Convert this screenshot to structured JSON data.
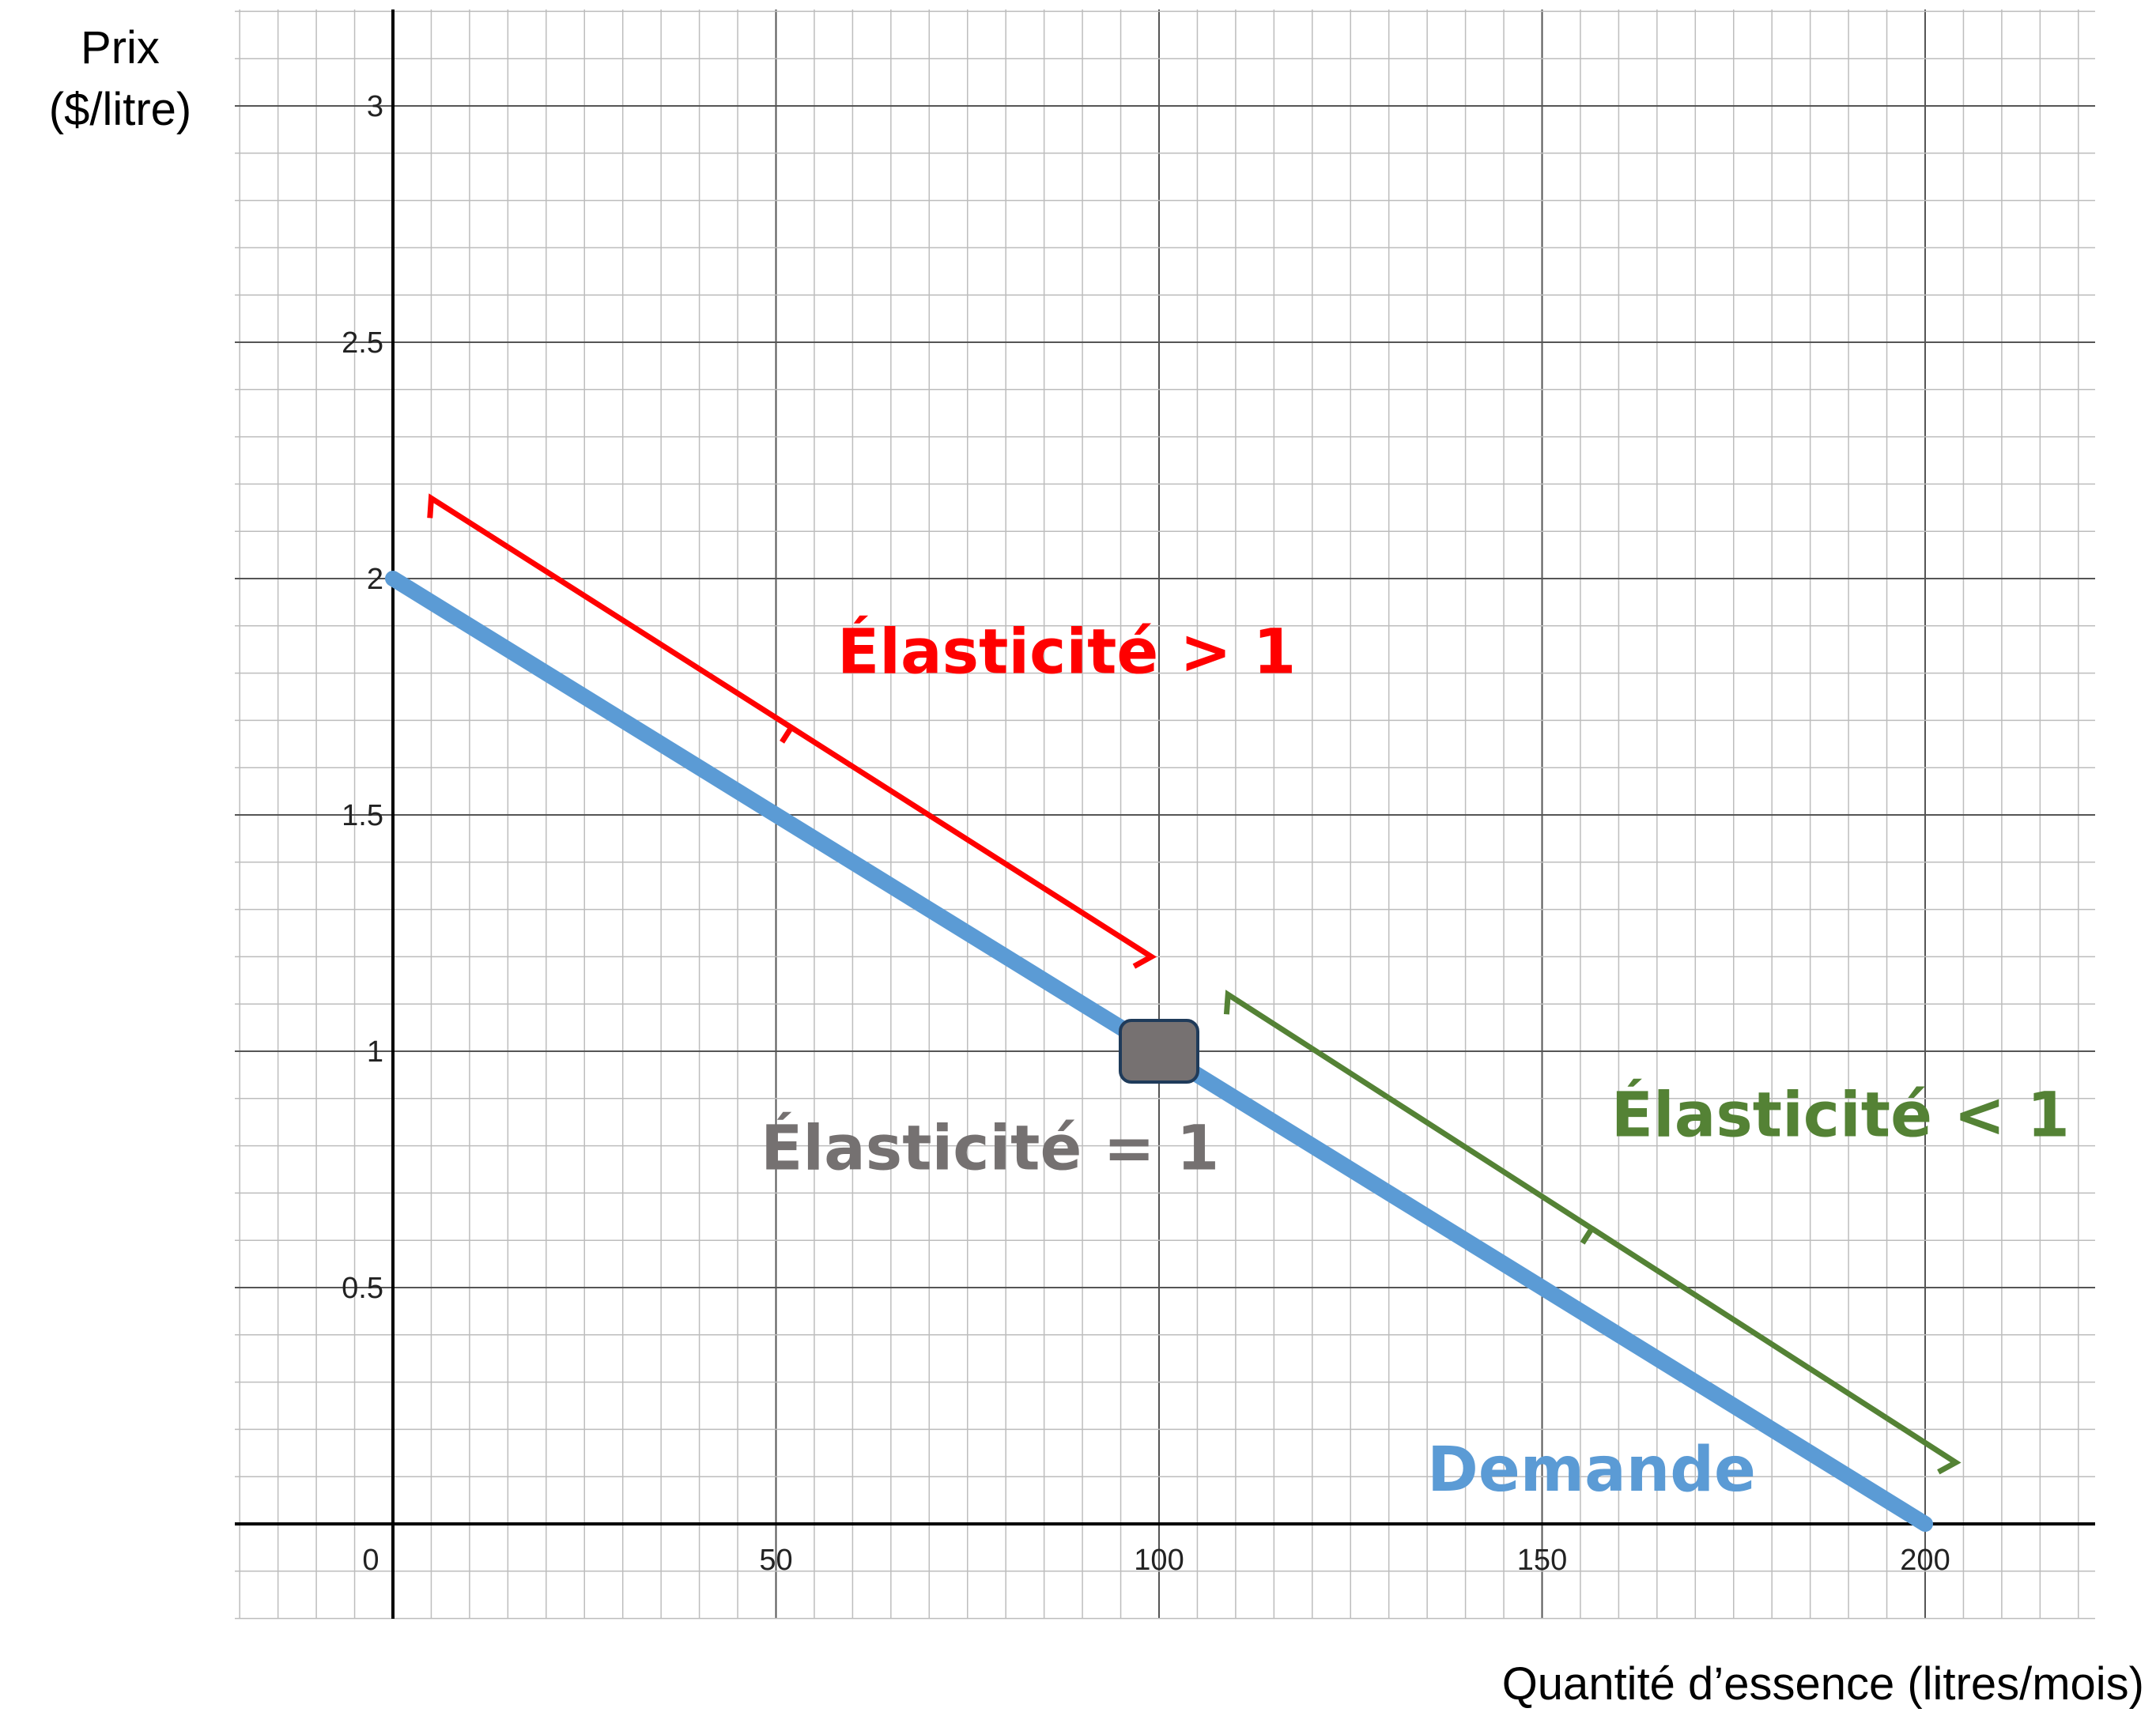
{
  "chart_data": {
    "type": "line",
    "title": "",
    "ylabel": [
      "Prix",
      "($/litre)"
    ],
    "xlabel": "Quantité d’essence (litres/mois)",
    "xlim": [
      -20,
      220
    ],
    "ylim": [
      -0.2,
      3.2
    ],
    "x_ticks": [
      0,
      50,
      100,
      150,
      200
    ],
    "x_tick_labels": [
      "0",
      "50",
      "100",
      "150",
      "200"
    ],
    "y_ticks": [
      0.5,
      1,
      1.5,
      2,
      2.5,
      3
    ],
    "y_tick_labels": [
      "0.5",
      "1",
      "1.5",
      "2",
      "2.5",
      "3"
    ],
    "grid": true,
    "series": [
      {
        "name": "Demande",
        "color": "#5b9bd5",
        "x": [
          0,
          200
        ],
        "y": [
          2,
          0
        ]
      }
    ],
    "annotations": [
      {
        "text": "Élasticité > 1",
        "color": "#ff0000",
        "x": 58,
        "y": 1.8
      },
      {
        "text": "Élasticité = 1",
        "color": "#757171",
        "x": 48,
        "y": 0.75
      },
      {
        "text": "Élasticité < 1",
        "color": "#548235",
        "x": 159,
        "y": 0.82
      },
      {
        "text": "Demande",
        "color": "#5b9bd5",
        "x": 135,
        "y": 0.07
      }
    ],
    "braces": [
      {
        "color": "#ff0000",
        "from": [
          5,
          2.17
        ],
        "to": [
          99,
          1.2
        ]
      },
      {
        "color": "#548235",
        "from": [
          109,
          1.12
        ],
        "to": [
          204,
          0.13
        ]
      }
    ],
    "marker": {
      "x": 100,
      "y": 1,
      "fill": "#767171",
      "stroke": "#1f3b5a"
    }
  }
}
